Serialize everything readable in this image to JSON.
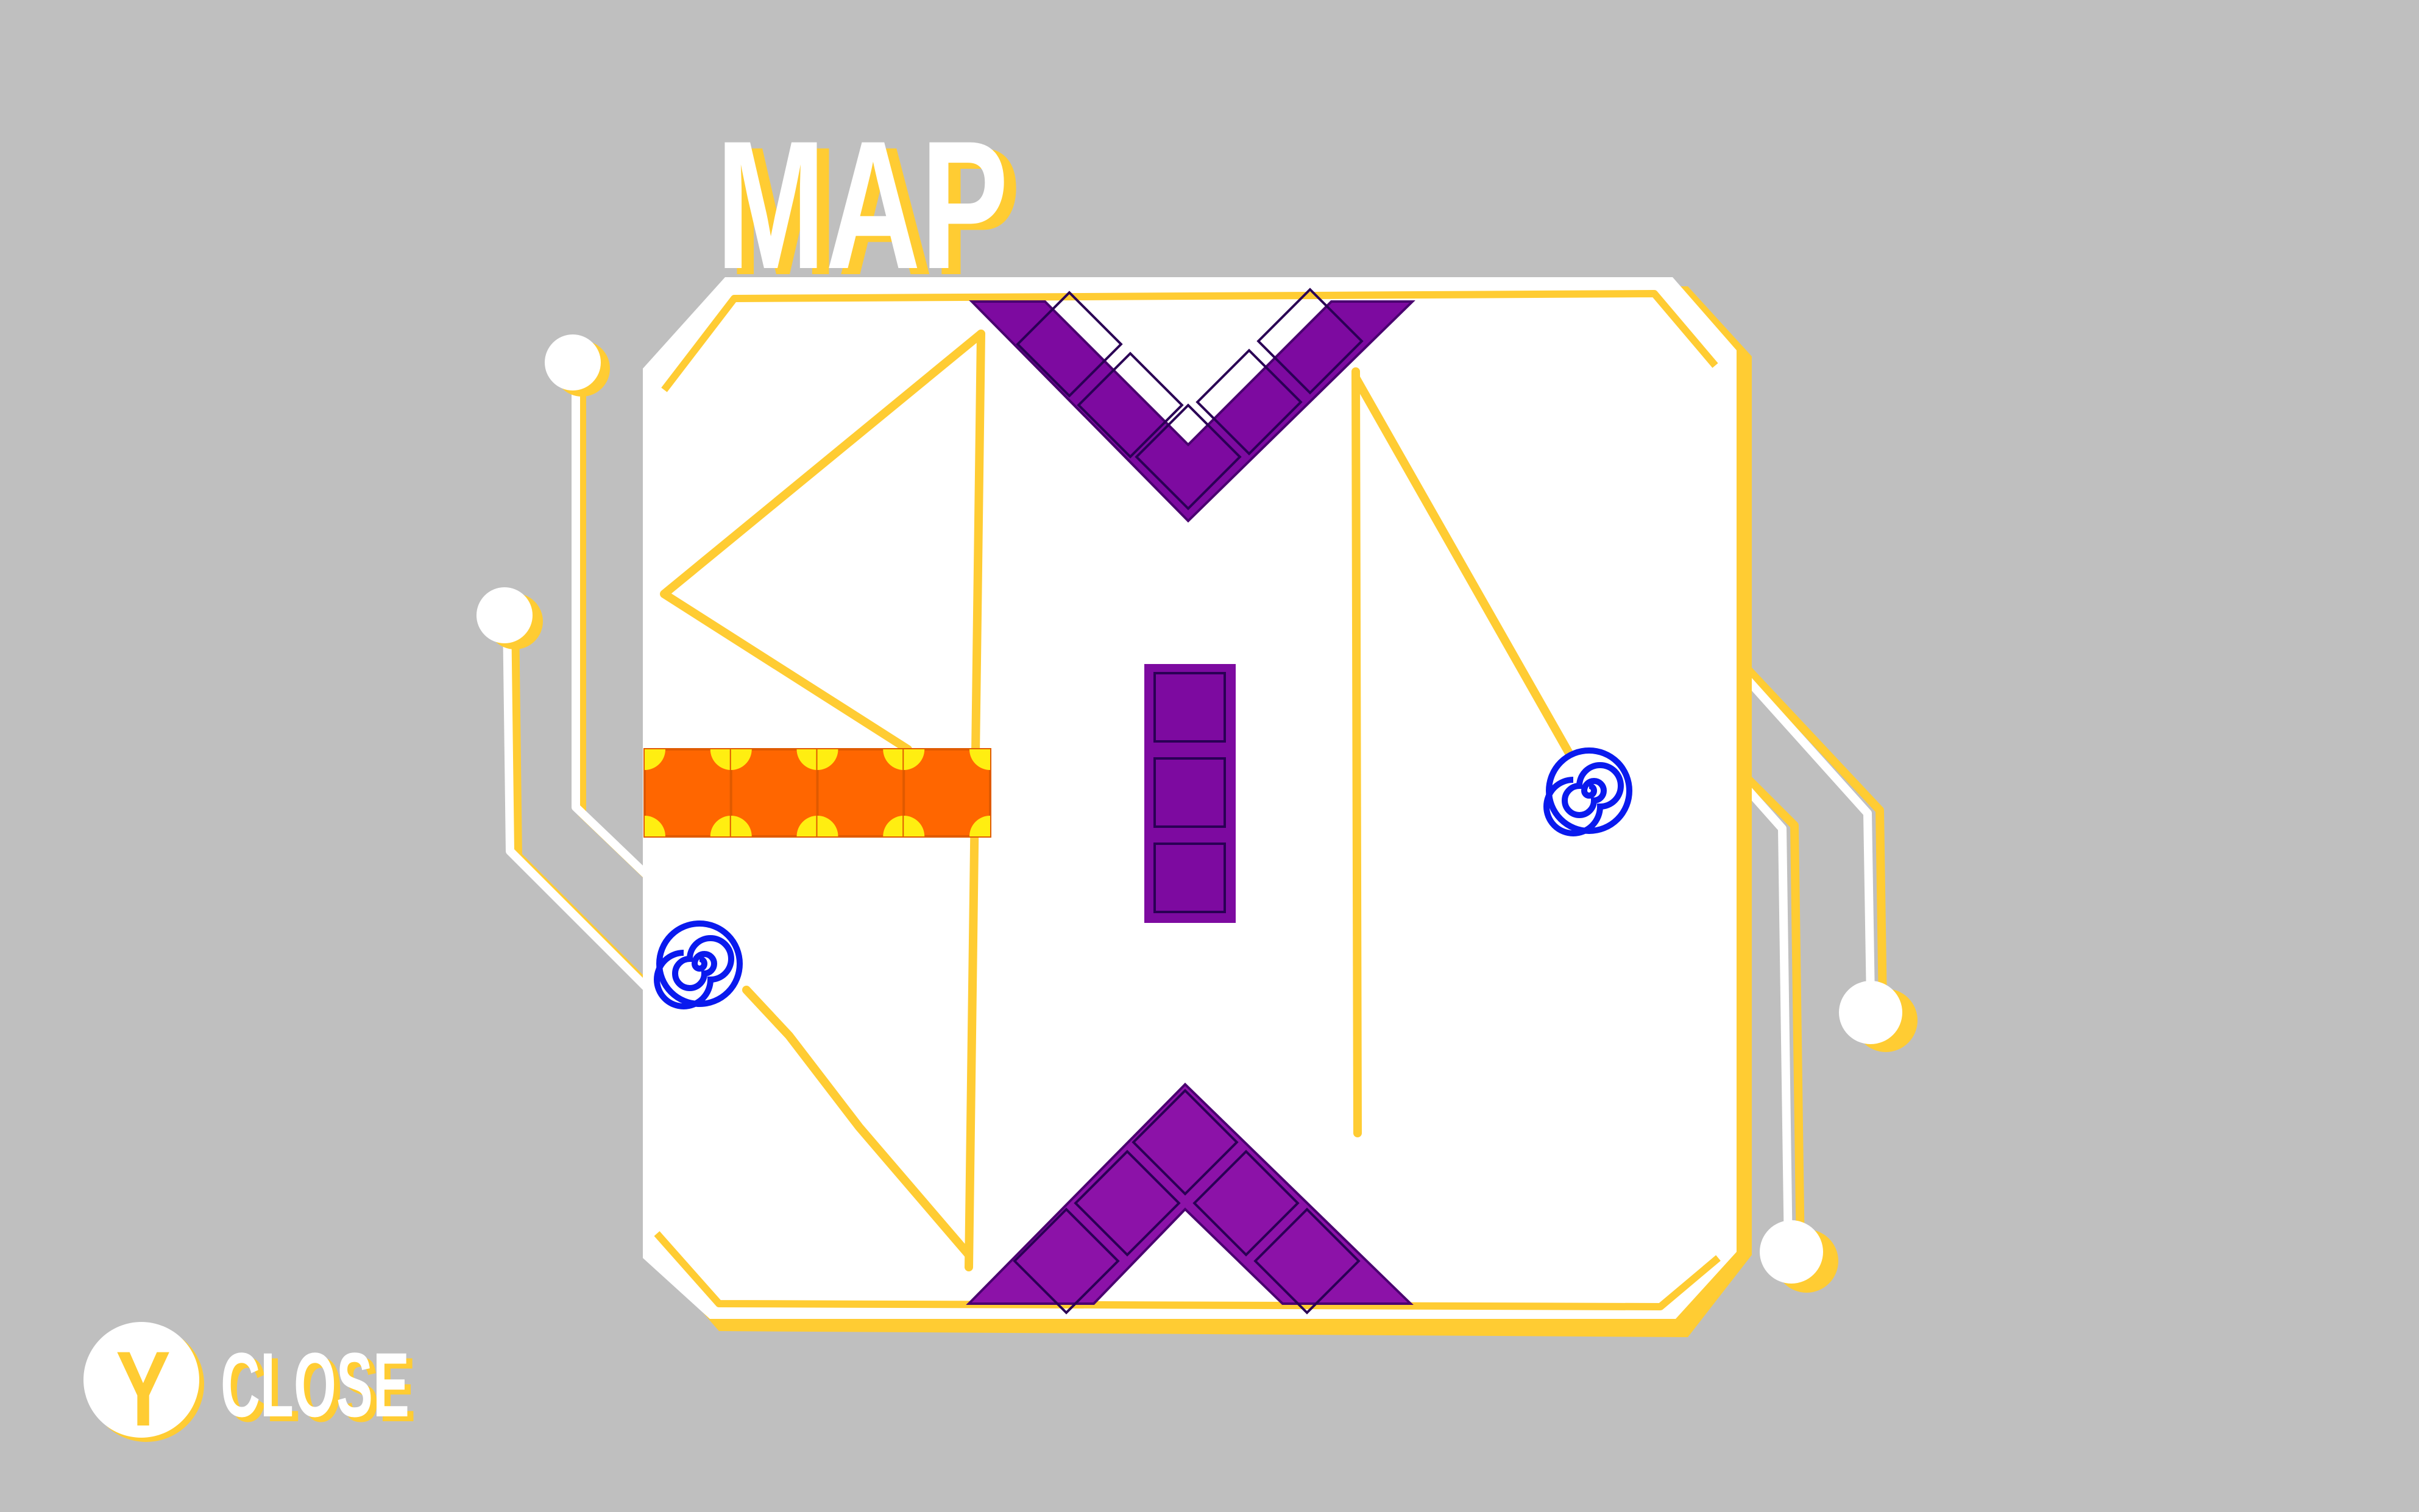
{
  "title": "MAP",
  "close_hint": {
    "button_glyph": "Y",
    "label": "CLOSE"
  },
  "colors": {
    "background": "#bfbfbf",
    "panel": "#ffffff",
    "accent": "#ffcc33",
    "block_purple": "#7d0aa0",
    "block_purple_light": "#8c12a8",
    "block_orange": "#ff6600",
    "block_orange_trim": "#ffee11",
    "portal": "#0a1aee"
  },
  "icons": {
    "portal": "spiral-portal-icon",
    "node": "circuit-node-icon",
    "button": "y-button-icon"
  }
}
